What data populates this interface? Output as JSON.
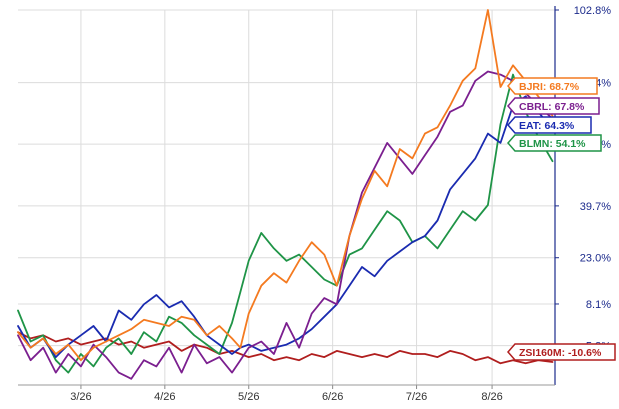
{
  "chart_data": {
    "type": "line",
    "title": "",
    "xlabel": "",
    "ylabel": "",
    "ylim": [
      -18.0,
      102.8
    ],
    "y_ticks": [
      "102.8%",
      "79.4%",
      "59.6%",
      "39.7%",
      "23.0%",
      "8.1%",
      "-5.3%"
    ],
    "y_tick_values": [
      102.8,
      79.4,
      59.6,
      39.7,
      23.0,
      8.1,
      -5.3
    ],
    "x_ticks": [
      "3/26",
      "4/26",
      "5/26",
      "6/26",
      "7/26",
      "8/26"
    ],
    "x_tick_positions": [
      1.1,
      2.1,
      3.1,
      4.1,
      5.1,
      6.0
    ],
    "xlim": [
      0.35,
      6.75
    ],
    "grid": true,
    "legend_placement": "right-side end labels",
    "axis_color": "#1c2b8c",
    "grid_color": "#dcdcdc",
    "series": [
      {
        "name": "BJRI",
        "label": "BJRI: 68.7%",
        "color": "#f47a20",
        "end_value": 68.7,
        "x": [
          0.35,
          0.5,
          0.65,
          0.8,
          0.95,
          1.1,
          1.25,
          1.4,
          1.55,
          1.7,
          1.85,
          2.0,
          2.15,
          2.3,
          2.45,
          2.6,
          2.75,
          2.9,
          3.0,
          3.1,
          3.25,
          3.4,
          3.55,
          3.7,
          3.85,
          4.0,
          4.15,
          4.3,
          4.45,
          4.6,
          4.75,
          4.9,
          5.05,
          5.2,
          5.35,
          5.5,
          5.65,
          5.8,
          5.95,
          6.1,
          6.25,
          6.4,
          6.55,
          6.72
        ],
        "y": [
          -1,
          -6,
          -3,
          -8,
          -5,
          -10,
          -6,
          -4,
          -2,
          0,
          3,
          2,
          1,
          4,
          3,
          -2,
          1,
          -3,
          -6,
          5,
          14,
          18,
          15,
          22,
          28,
          24,
          14,
          30,
          42,
          51,
          46,
          58,
          55,
          63,
          65,
          72,
          80,
          84,
          102.8,
          78,
          85,
          80,
          75,
          68.7
        ]
      },
      {
        "name": "CBRL",
        "label": "CBRL: 67.8%",
        "color": "#7b1f8f",
        "end_value": 67.8,
        "x": [
          0.35,
          0.5,
          0.65,
          0.8,
          0.95,
          1.1,
          1.25,
          1.4,
          1.55,
          1.7,
          1.85,
          2.0,
          2.15,
          2.3,
          2.45,
          2.6,
          2.75,
          2.9,
          3.0,
          3.1,
          3.25,
          3.4,
          3.55,
          3.7,
          3.85,
          4.0,
          4.15,
          4.3,
          4.45,
          4.6,
          4.75,
          4.9,
          5.05,
          5.2,
          5.35,
          5.5,
          5.65,
          5.8,
          5.95,
          6.1,
          6.25,
          6.4,
          6.55,
          6.72
        ],
        "y": [
          -2,
          -10,
          -6,
          -14,
          -8,
          -12,
          -5,
          -9,
          -14,
          -16,
          -10,
          -12,
          -6,
          -14,
          -5,
          -11,
          -9,
          -14,
          -10,
          -6,
          -4,
          -8,
          2,
          -6,
          5,
          10,
          8,
          30,
          44,
          52,
          60,
          55,
          50,
          56,
          62,
          70,
          72,
          80,
          83,
          82,
          80,
          76,
          72,
          67.8
        ]
      },
      {
        "name": "EAT",
        "label": "EAT: 64.3%",
        "color": "#1a2bb0",
        "end_value": 64.3,
        "x": [
          0.35,
          0.5,
          0.65,
          0.8,
          0.95,
          1.1,
          1.25,
          1.4,
          1.55,
          1.7,
          1.85,
          2.0,
          2.15,
          2.3,
          2.45,
          2.6,
          2.75,
          2.9,
          3.0,
          3.1,
          3.25,
          3.4,
          3.55,
          3.7,
          3.85,
          4.0,
          4.15,
          4.3,
          4.45,
          4.6,
          4.75,
          4.9,
          5.05,
          5.2,
          5.35,
          5.5,
          5.65,
          5.8,
          5.95,
          6.1,
          6.25,
          6.4,
          6.55,
          6.72
        ],
        "y": [
          1,
          -6,
          -3,
          -9,
          -5,
          -2,
          1,
          -4,
          6,
          3,
          8,
          11,
          7,
          9,
          4,
          -2,
          -5,
          -8,
          -6,
          -5,
          -7,
          -6,
          -5,
          -3,
          0,
          4,
          8,
          14,
          20,
          17,
          22,
          25,
          28,
          30,
          35,
          45,
          50,
          55,
          63,
          60,
          72,
          75,
          70,
          64.3
        ]
      },
      {
        "name": "BLMN",
        "label": "BLMN: 54.1%",
        "color": "#1f9447",
        "end_value": 54.1,
        "x": [
          0.35,
          0.5,
          0.65,
          0.8,
          0.95,
          1.1,
          1.25,
          1.4,
          1.55,
          1.7,
          1.85,
          2.0,
          2.15,
          2.3,
          2.45,
          2.6,
          2.75,
          2.9,
          3.0,
          3.1,
          3.25,
          3.4,
          3.55,
          3.7,
          3.85,
          4.0,
          4.15,
          4.3,
          4.45,
          4.6,
          4.75,
          4.9,
          5.05,
          5.2,
          5.35,
          5.5,
          5.65,
          5.8,
          5.95,
          6.1,
          6.25,
          6.4,
          6.55,
          6.72
        ],
        "y": [
          6,
          -4,
          -2,
          -10,
          -14,
          -8,
          -12,
          -6,
          -3,
          -8,
          -1,
          -4,
          4,
          2,
          -2,
          -5,
          -8,
          2,
          12,
          22,
          31,
          26,
          22,
          24,
          20,
          16,
          14,
          24,
          26,
          32,
          38,
          35,
          28,
          30,
          26,
          32,
          38,
          35,
          40,
          66,
          82,
          70,
          62,
          54.1
        ]
      },
      {
        "name": "ZSI160M",
        "label": "ZSI160M: -10.6%",
        "color": "#b01e1e",
        "end_value": -10.6,
        "x": [
          0.35,
          0.5,
          0.65,
          0.8,
          0.95,
          1.1,
          1.25,
          1.4,
          1.55,
          1.7,
          1.85,
          2.0,
          2.15,
          2.3,
          2.45,
          2.6,
          2.75,
          2.9,
          3.0,
          3.1,
          3.25,
          3.4,
          3.55,
          3.7,
          3.85,
          4.0,
          4.15,
          4.3,
          4.45,
          4.6,
          4.75,
          4.9,
          5.05,
          5.2,
          5.35,
          5.5,
          5.65,
          5.8,
          5.95,
          6.1,
          6.25,
          6.4,
          6.55,
          6.72
        ],
        "y": [
          -1,
          -3,
          -2,
          -4,
          -3,
          -5,
          -4,
          -3,
          -5,
          -4,
          -6,
          -5,
          -4,
          -7,
          -5,
          -6,
          -8,
          -7,
          -8,
          -9,
          -8,
          -10,
          -9,
          -10,
          -8,
          -9,
          -7,
          -8,
          -9,
          -8,
          -9,
          -7,
          -8,
          -8,
          -9,
          -7,
          -8,
          -10,
          -9,
          -11,
          -10,
          -11,
          -10,
          -10.6
        ]
      }
    ]
  }
}
